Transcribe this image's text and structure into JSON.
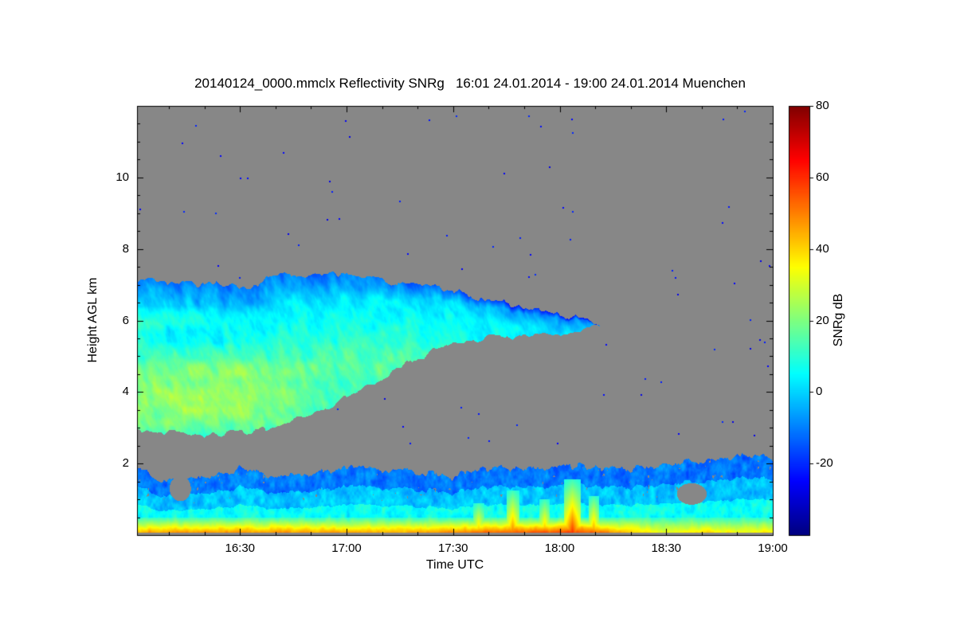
{
  "chart_data": {
    "type": "heatmap",
    "title": "20140124_0000.mmclx Reflectivity SNRg   16:01 24.01.2014 - 19:00 24.01.2014 Muenchen",
    "xlabel": "Time UTC",
    "ylabel": "Height AGL km",
    "x_axis": {
      "start": 16.0167,
      "end": 19.0,
      "ticks": [
        {
          "value": 16.5,
          "label": "16:30"
        },
        {
          "value": 17.0,
          "label": "17:00"
        },
        {
          "value": 17.5,
          "label": "17:30"
        },
        {
          "value": 18.0,
          "label": "18:00"
        },
        {
          "value": 18.5,
          "label": "18:30"
        },
        {
          "value": 19.0,
          "label": "19:00"
        }
      ],
      "minor_step_hours": 0.1666667
    },
    "y_axis": {
      "min": 0,
      "max": 12,
      "ticks": [
        {
          "value": 2,
          "label": "2"
        },
        {
          "value": 4,
          "label": "4"
        },
        {
          "value": 6,
          "label": "6"
        },
        {
          "value": 8,
          "label": "8"
        },
        {
          "value": 10,
          "label": "10"
        }
      ],
      "minor_step_km": 0.5
    },
    "colorbar": {
      "label": "SNRg dB",
      "min": -40,
      "max": 80,
      "ticks": [
        {
          "value": 80,
          "label": "80"
        },
        {
          "value": 60,
          "label": "60"
        },
        {
          "value": 40,
          "label": "40"
        },
        {
          "value": 20,
          "label": "20"
        },
        {
          "value": 0,
          "label": "0"
        },
        {
          "value": -20,
          "label": "-20"
        }
      ],
      "colormap": "jet"
    },
    "colors": {
      "no_data": "#878787",
      "frame": "#000000",
      "page_background": "#ffffff",
      "text": "#000000"
    },
    "features": {
      "mid_level_cloud": {
        "time_start": 16.017,
        "time_end": 18.19,
        "top_km": [
          [
            16.017,
            7.15
          ],
          [
            16.2,
            7.05
          ],
          [
            16.45,
            6.95
          ],
          [
            16.6,
            7.05
          ],
          [
            16.75,
            7.3
          ],
          [
            16.95,
            7.32
          ],
          [
            17.1,
            7.2
          ],
          [
            17.25,
            7.05
          ],
          [
            17.4,
            6.9
          ],
          [
            17.55,
            6.75
          ],
          [
            17.7,
            6.55
          ],
          [
            17.85,
            6.35
          ],
          [
            18.0,
            6.15
          ],
          [
            18.19,
            5.88
          ]
        ],
        "bottom_km": [
          [
            16.017,
            2.95
          ],
          [
            16.2,
            2.85
          ],
          [
            16.4,
            2.82
          ],
          [
            16.6,
            2.95
          ],
          [
            16.8,
            3.3
          ],
          [
            17.0,
            3.85
          ],
          [
            17.15,
            4.3
          ],
          [
            17.3,
            4.85
          ],
          [
            17.42,
            5.2
          ],
          [
            17.55,
            5.45
          ],
          [
            17.7,
            5.55
          ],
          [
            17.9,
            5.6
          ],
          [
            18.05,
            5.65
          ],
          [
            18.19,
            5.82
          ]
        ],
        "green_core": {
          "t_center": 16.35,
          "t_width": 0.6,
          "km_center": 3.85,
          "km_width": 1.1,
          "boost_db": 14
        },
        "bright_bands": [
          {
            "km_center": 4.85,
            "km_width": 0.55,
            "boost_db": 5,
            "t_fade_end": 17.45
          },
          {
            "km_center": 6.05,
            "km_width": 0.35,
            "boost_db": 6,
            "t_fade_end": 16.55
          }
        ],
        "tip_darken_start": 17.25,
        "tip_darken_rate_db_per_hr": 15
      },
      "boundary_layer": {
        "top_km": [
          [
            16.017,
            1.95
          ],
          [
            16.13,
            1.45
          ],
          [
            16.3,
            1.6
          ],
          [
            16.5,
            1.85
          ],
          [
            16.7,
            1.6
          ],
          [
            16.9,
            1.78
          ],
          [
            17.1,
            1.88
          ],
          [
            17.3,
            1.75
          ],
          [
            17.5,
            1.65
          ],
          [
            17.7,
            1.9
          ],
          [
            17.9,
            1.85
          ],
          [
            18.1,
            1.95
          ],
          [
            18.3,
            1.85
          ],
          [
            18.5,
            1.95
          ],
          [
            18.7,
            2.1
          ],
          [
            18.85,
            2.2
          ],
          [
            19.0,
            2.2
          ]
        ],
        "bottom_km": 0.07,
        "surface_db": [
          [
            16.017,
            52
          ],
          [
            16.6,
            54
          ],
          [
            17.0,
            52
          ],
          [
            17.3,
            50
          ],
          [
            17.6,
            58
          ],
          [
            17.9,
            62
          ],
          [
            18.05,
            66
          ],
          [
            18.2,
            58
          ],
          [
            18.35,
            46
          ],
          [
            18.5,
            36
          ],
          [
            18.7,
            44
          ],
          [
            18.85,
            38
          ],
          [
            19.0,
            42
          ]
        ],
        "updraft_streaks": [
          {
            "t": 17.62,
            "width": 0.025,
            "top_km": 0.9,
            "db": 48
          },
          {
            "t": 17.78,
            "width": 0.03,
            "top_km": 1.25,
            "db": 54
          },
          {
            "t": 17.93,
            "width": 0.025,
            "top_km": 1.0,
            "db": 50
          },
          {
            "t": 18.06,
            "width": 0.04,
            "top_km": 1.55,
            "db": 62
          },
          {
            "t": 18.16,
            "width": 0.025,
            "top_km": 1.1,
            "db": 52
          }
        ],
        "holes": [
          {
            "t": 18.62,
            "km": 1.15,
            "rt": 0.07,
            "rkm": 0.3
          },
          {
            "t": 16.22,
            "km": 1.3,
            "rt": 0.05,
            "rkm": 0.35
          }
        ]
      },
      "noise_speckles": {
        "count": 90,
        "db": -24,
        "km_min": 2.4,
        "km_max": 11.85
      }
    }
  }
}
